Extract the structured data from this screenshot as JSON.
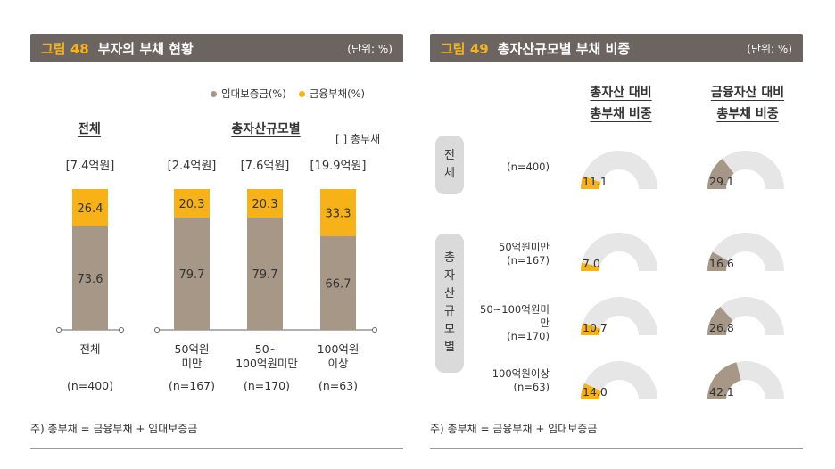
{
  "fig48": {
    "label": "그림 48",
    "title": "부자의 부채 현황",
    "unit": "(단위: %)",
    "legend": [
      {
        "name": "임대보증금(%)",
        "color": "#a69787"
      },
      {
        "name": "금융부채(%)",
        "color": "#f7b21a"
      }
    ],
    "group_all": "전체",
    "group_size": "총자산규모별",
    "bracket_note": "[ ] 총부채",
    "footnote": "주) 총부채 = 금융부채 + 임대보증금"
  },
  "fig49": {
    "label": "그림 49",
    "title": "총자산규모별 부채 비중",
    "unit": "(단위: %)",
    "col1": [
      "총자산 대비",
      "총부채 비중"
    ],
    "col2": [
      "금융자산 대비",
      "총부채 비중"
    ],
    "tab_all": "전체",
    "tab_size": "총자산규모별",
    "rows": [
      {
        "label": "",
        "n": "(n=400)"
      },
      {
        "label": "50억원미만",
        "n": "(n=167)"
      },
      {
        "label": "50~100억원미만",
        "n": "(n=170)"
      },
      {
        "label": "100억원이상",
        "n": "(n=63)"
      }
    ],
    "footnote": "주) 총부채 = 금융부채 + 임대보증금"
  },
  "chart_data": [
    {
      "type": "bar",
      "stacked": true,
      "categories": [
        "전체",
        "50억원 미만",
        "50~ 100억원미만",
        "100억원 이상"
      ],
      "category_lines": [
        [
          "전체"
        ],
        [
          "50억원",
          "미만"
        ],
        [
          "50~",
          "100억원미만"
        ],
        [
          "100억원",
          "이상"
        ]
      ],
      "n_labels": [
        "(n=400)",
        "(n=167)",
        "(n=170)",
        "(n=63)"
      ],
      "totals": [
        "[7.4억원]",
        "[2.4억원]",
        "[7.6억원]",
        "[19.9억원]"
      ],
      "series": [
        {
          "name": "임대보증금(%)",
          "values": [
            73.6,
            79.7,
            79.7,
            66.7
          ],
          "labels": [
            "73.6",
            "79.7",
            "79.7",
            "66.7"
          ],
          "color": "#a69787"
        },
        {
          "name": "금융부채(%)",
          "values": [
            26.4,
            20.3,
            20.3,
            33.3
          ],
          "labels": [
            "26.4",
            "20.3",
            "20.3",
            "33.3"
          ],
          "color": "#f7b21a"
        }
      ],
      "ylim": [
        0,
        100
      ]
    },
    {
      "type": "gauge",
      "max": 100,
      "rows": [
        "전체",
        "50억원미만",
        "50~100억원미만",
        "100억원이상"
      ],
      "series": [
        {
          "name": "총자산 대비 총부채 비중",
          "values": [
            11.1,
            7.0,
            10.7,
            14.0
          ],
          "labels": [
            "11.1",
            "7.0",
            "10.7",
            "14.0"
          ],
          "fill_color": "#f7b21a"
        },
        {
          "name": "금융자산 대비 총부채 비중",
          "values": [
            29.1,
            16.6,
            26.8,
            42.1
          ],
          "labels": [
            "29.1",
            "16.6",
            "26.8",
            "42.1"
          ],
          "fill_color": "#a69787"
        }
      ],
      "track_color": "#e6e6e6"
    }
  ]
}
